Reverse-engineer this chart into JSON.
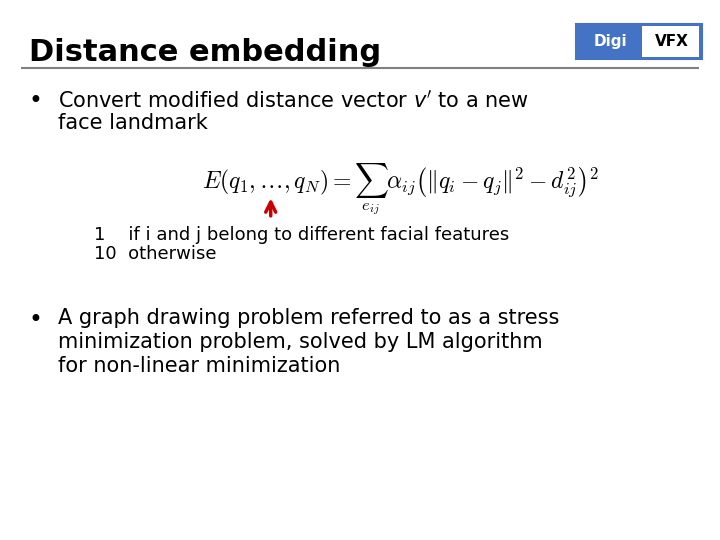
{
  "title": "Distance embedding",
  "bg_color": "#ffffff",
  "title_color": "#000000",
  "title_fontsize": 22,
  "logo_text_digi": "Digi",
  "logo_text_vfx": "VFX",
  "logo_bg": "#4472c4",
  "logo_text_color": "#ffffff",
  "logo_digi_color": "#ffffff",
  "logo_vfx_color": "#000000",
  "separator_color": "#808080",
  "bullet1_line1": "Convert modified distance vector $v'$ to a new",
  "bullet1_line2": "face landmark",
  "formula": "$E(q_1,\\ldots,q_N) = \\sum_{e_{ij}} \\alpha_{ij} \\left(\\|q_i - q_j\\|^2 - d_{ij}^2\\right)^2$",
  "annotation_line1": "1    if i and j belong to different facial features",
  "annotation_line2": "10  otherwise",
  "bullet2_line1": "A graph drawing problem referred to as a stress",
  "bullet2_line2": "minimization problem, solved by LM algorithm",
  "bullet2_line3": "for non-linear minimization",
  "arrow_color": "#cc0000",
  "text_fontsize": 15,
  "annotation_fontsize": 13
}
